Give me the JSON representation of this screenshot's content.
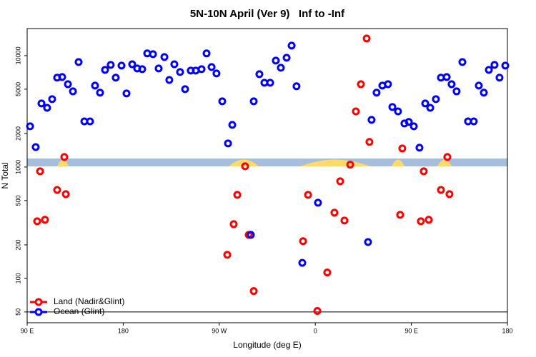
{
  "chart_data": {
    "type": "scatter",
    "title": "5N-10N April (Ver 9)   Inf to -Inf",
    "x_label": "Longitude (deg E)",
    "y_label": "N Total",
    "log_y": true,
    "xlim": [
      90,
      540
    ],
    "ylim": [
      40,
      17500
    ],
    "xticks": [
      {
        "value": 90,
        "label": "90 E"
      },
      180,
      {
        "value": 270,
        "label": "90 W"
      },
      {
        "value": 360,
        "label": "0"
      },
      {
        "value": 450,
        "label": "90 E"
      },
      {
        "value": 540,
        "label": "180"
      }
    ],
    "yticks": [
      50,
      100,
      200,
      500,
      1000,
      2000,
      5000,
      10000
    ],
    "hline": 50,
    "legend": "bottom-left",
    "series": [
      {
        "name": "Land (Nadir&Glint)",
        "color": "#ff0000",
        "x": [
          99.4,
          102.1,
          106.7,
          118.1,
          124.8,
          126.2,
          277.5,
          283.5,
          286.9,
          294.2,
          297.6,
          302.3,
          348.5,
          353.2,
          361.9,
          371.2,
          377.9,
          383.3,
          387.3,
          392.7,
          398,
          402.7,
          408.1,
          410.7,
          439.5,
          441.5,
          458.9,
          461.6,
          466.3,
          477.7,
          483.7,
          485.7
        ],
        "values": [
          326,
          916,
          336,
          623,
          1230,
          571,
          163,
          307,
          563,
          1016,
          246,
          77,
          216,
          563,
          51,
          113,
          389,
          745,
          331,
          1050,
          3160,
          5540,
          14260,
          1680,
          372,
          1470,
          326,
          916,
          336,
          623,
          1230,
          571
        ]
      },
      {
        "name": "Ocean (Glint)",
        "color": "#0000ff",
        "x": [
          92.7,
          98,
          103.4,
          108.7,
          113.4,
          118.1,
          122.8,
          128.2,
          132.9,
          138.2,
          143.6,
          148.9,
          153.6,
          158.3,
          163,
          168.3,
          173,
          178.4,
          183.1,
          188.4,
          193.1,
          197.8,
          202.5,
          207.9,
          213.2,
          218.6,
          223.2,
          227.9,
          233.3,
          238,
          243.3,
          248,
          253.4,
          258.1,
          262.8,
          267.4,
          272.8,
          278.2,
          282.2,
          299.6,
          302.3,
          307.6,
          312.3,
          317.7,
          323,
          327.7,
          333.1,
          337.8,
          342.4,
          347.8,
          362.5,
          409.4,
          412.7,
          417.4,
          422.8,
          428.1,
          432.2,
          437.5,
          443.5,
          447.6,
          452.3,
          457.6,
          463,
          467.7,
          473,
          477.7,
          483.1,
          487.7,
          492.4,
          497.8,
          503.1,
          508.5,
          513.2,
          517.9,
          522.6,
          527.9,
          532.6,
          538
        ],
        "values": [
          2320,
          1510,
          3720,
          3400,
          4070,
          6340,
          6430,
          5540,
          4780,
          8760,
          2570,
          2570,
          5380,
          4650,
          7450,
          8260,
          6340,
          8140,
          4580,
          8370,
          7670,
          7560,
          10470,
          10300,
          7670,
          9710,
          6050,
          8370,
          7130,
          5000,
          7340,
          7340,
          7560,
          10470,
          7900,
          6920,
          3890,
          1630,
          2390,
          246,
          3890,
          6820,
          5710,
          5710,
          9020,
          7780,
          9570,
          12300,
          5310,
          138,
          478,
          212,
          2650,
          4650,
          5380,
          5540,
          3460,
          3160,
          2460,
          2540,
          2320,
          1490,
          3720,
          3400,
          4070,
          6340,
          6430,
          5540,
          4780,
          8760,
          2570,
          2570,
          5380,
          4650,
          7450,
          8260,
          6340,
          8140
        ]
      }
    ]
  }
}
